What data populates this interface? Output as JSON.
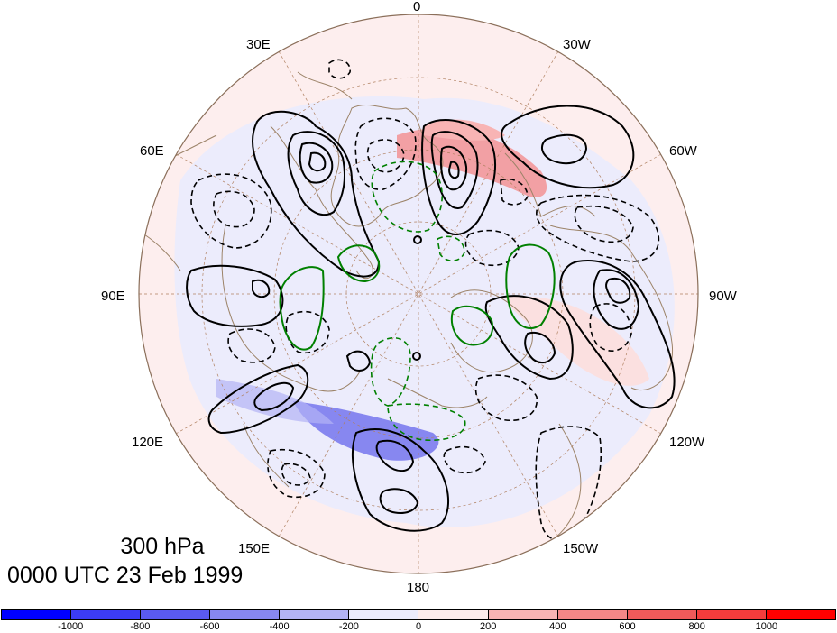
{
  "figure": {
    "level": "300 hPa",
    "valid_time": "0000 UTC 23 Feb 1999",
    "projection": "north polar stereographic",
    "longitude_labels": [
      "0",
      "30W",
      "60W",
      "90W",
      "120W",
      "150W",
      "180",
      "150E",
      "120E",
      "90E",
      "60E",
      "30E"
    ]
  },
  "colorbar": {
    "tick_labels": [
      "-1000",
      "-800",
      "-600",
      "-400",
      "-200",
      "0",
      "200",
      "400",
      "600",
      "800",
      "1000"
    ],
    "colors": [
      "#0000ff",
      "#3c3cf5",
      "#5a5af0",
      "#8787f0",
      "#b4b4f5",
      "#ebebfc",
      "#fdecec",
      "#f8b4b4",
      "#f48787",
      "#f05a5a",
      "#f53c3c",
      "#ff0000"
    ]
  },
  "colors": {
    "positive_contour": "#000000",
    "negative_contour": "#000000",
    "green_contour": "#008000",
    "coastline": "#8b7355",
    "grid": "#a0522d"
  }
}
